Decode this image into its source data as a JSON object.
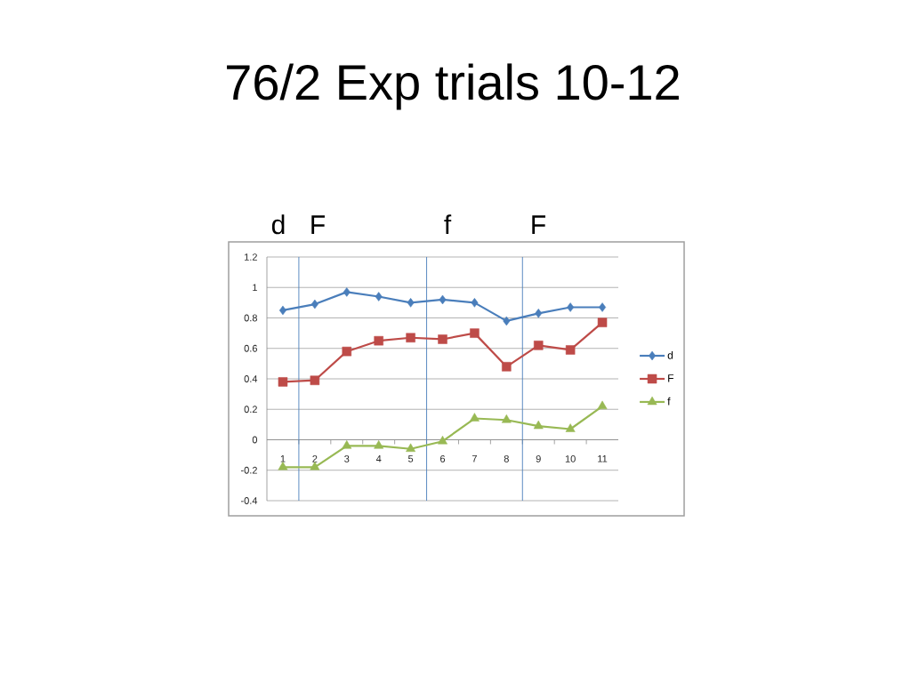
{
  "chart_data": {
    "type": "line",
    "title": "76/2 Exp trials 10-12",
    "x": [
      1,
      2,
      3,
      4,
      5,
      6,
      7,
      8,
      9,
      10,
      11
    ],
    "xlim": [
      0.5,
      11.5
    ],
    "xticks": [
      1,
      2,
      3,
      4,
      5,
      6,
      7,
      8,
      9,
      10,
      11
    ],
    "ylim": [
      -0.4,
      1.2
    ],
    "yticks": [
      -0.4,
      -0.2,
      0,
      0.2,
      0.4,
      0.6,
      0.8,
      1,
      1.2
    ],
    "series": [
      {
        "name": "d",
        "color": "#4a7ebb",
        "marker": "diamond",
        "values": [
          0.85,
          0.89,
          0.97,
          0.94,
          0.9,
          0.92,
          0.9,
          0.78,
          0.83,
          0.87,
          0.87
        ]
      },
      {
        "name": "F",
        "color": "#be4b48",
        "marker": "square",
        "values": [
          0.38,
          0.39,
          0.58,
          0.65,
          0.67,
          0.66,
          0.7,
          0.48,
          0.62,
          0.59,
          0.77
        ]
      },
      {
        "name": "f",
        "color": "#98b954",
        "marker": "triangle",
        "values": [
          -0.18,
          -0.18,
          -0.04,
          -0.04,
          -0.06,
          -0.01,
          0.14,
          0.13,
          0.09,
          0.07,
          0.22
        ]
      }
    ],
    "grid": "y",
    "legend": "right",
    "line_style": "solid",
    "ref_lines": [
      {
        "axis": "x",
        "value": 1.5,
        "color": "#4a7ebb"
      },
      {
        "axis": "x",
        "value": 5.5,
        "color": "#4a7ebb"
      },
      {
        "axis": "x",
        "value": 8.5,
        "color": "#4a7ebb"
      }
    ],
    "annotations": [
      "d",
      "F",
      "f",
      "F"
    ]
  }
}
